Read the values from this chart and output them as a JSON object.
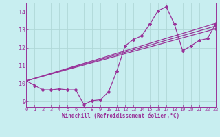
{
  "xlabel": "Windchill (Refroidissement éolien,°C)",
  "background_color": "#c8eef0",
  "line_color": "#993399",
  "grid_color": "#b0d8d8",
  "x_min": 0,
  "x_max": 23,
  "y_min": 8.7,
  "y_max": 14.5,
  "yticks": [
    9,
    10,
    11,
    12,
    13,
    14
  ],
  "xticks": [
    0,
    1,
    2,
    3,
    4,
    5,
    6,
    7,
    8,
    9,
    10,
    11,
    12,
    13,
    14,
    15,
    16,
    17,
    18,
    19,
    20,
    21,
    22,
    23
  ],
  "series1_x": [
    0,
    1,
    2,
    3,
    4,
    5,
    6,
    7,
    8,
    9,
    10,
    11,
    12,
    13,
    14,
    15,
    16,
    17,
    18,
    19,
    20,
    21,
    22,
    23
  ],
  "series1_y": [
    10.15,
    9.9,
    9.65,
    9.65,
    9.7,
    9.65,
    9.65,
    8.82,
    9.05,
    9.1,
    9.55,
    10.7,
    12.1,
    12.45,
    12.65,
    13.3,
    14.05,
    14.28,
    13.3,
    11.82,
    12.1,
    12.4,
    12.5,
    13.3
  ],
  "series2_x": [
    0,
    23
  ],
  "series2_y": [
    10.15,
    13.35
  ],
  "series3_x": [
    0,
    23
  ],
  "series3_y": [
    10.15,
    13.2
  ],
  "series4_x": [
    0,
    23
  ],
  "series4_y": [
    10.15,
    13.05
  ]
}
